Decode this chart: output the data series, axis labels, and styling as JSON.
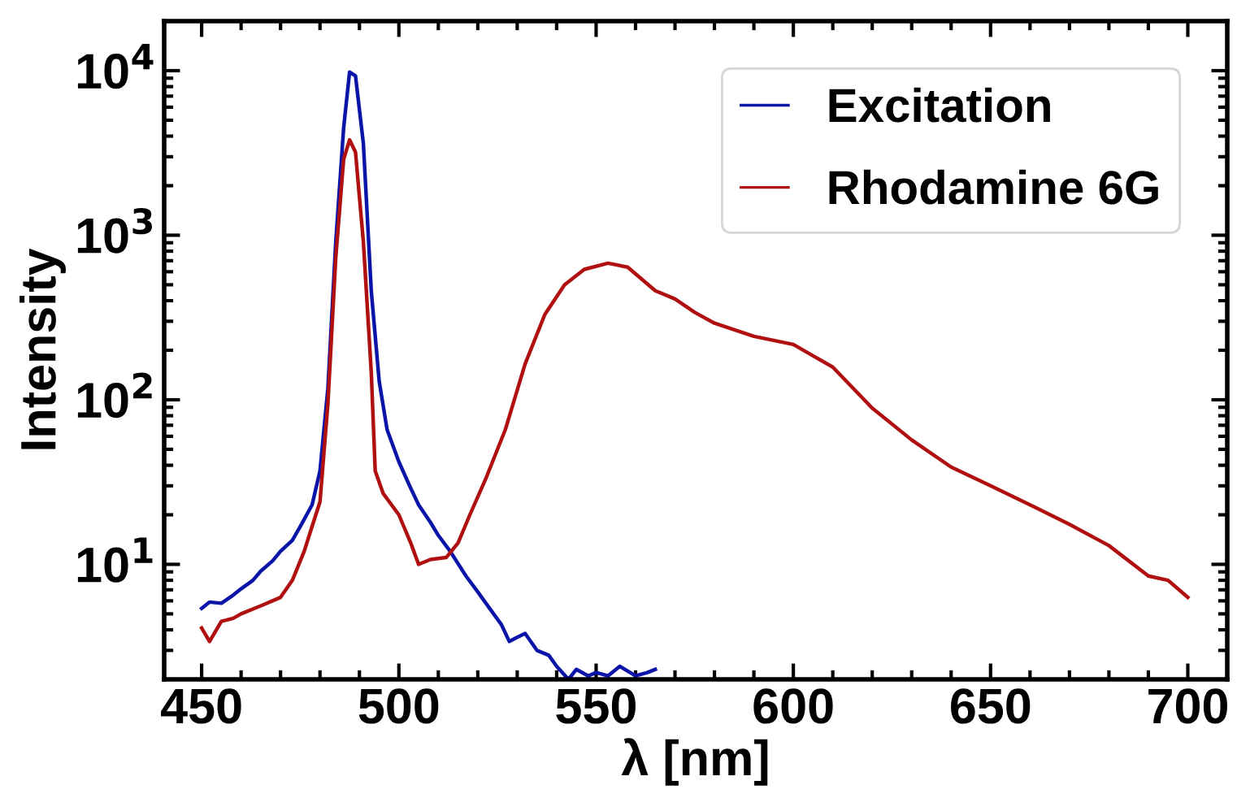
{
  "chart_data": {
    "type": "line",
    "xlabel": "λ [nm]",
    "ylabel": "Intensity",
    "log": "y",
    "xlim": [
      440.5,
      710
    ],
    "ylim": [
      2,
      20000
    ],
    "xticks": [
      450,
      500,
      550,
      600,
      650,
      700
    ],
    "yticks": [
      {
        "value": 10,
        "label": "10$^{1}$"
      },
      {
        "value": 100,
        "label": "10$^{2}$"
      },
      {
        "value": 1000,
        "label": "10$^{3}$"
      },
      {
        "value": 10000,
        "label": "10$^{4}$"
      }
    ],
    "legend": "top right",
    "grid": false,
    "marker": "none",
    "line_style": "solid",
    "series": [
      {
        "name": "Excitation",
        "color": "#0a14a8",
        "x": [
          450,
          452,
          455,
          458,
          460,
          463,
          465,
          468,
          470,
          473,
          475,
          478,
          480,
          482,
          484,
          486,
          487.5,
          489,
          491,
          493,
          495,
          497,
          500,
          503,
          505,
          508,
          510,
          513,
          517,
          520,
          523,
          526,
          528,
          530,
          532,
          535,
          538,
          540,
          543,
          545,
          548,
          550,
          553,
          556,
          560,
          563,
          565
        ],
        "values": [
          5.4,
          5.9,
          5.8,
          6.5,
          7.1,
          8.0,
          9.1,
          10.5,
          12,
          14,
          17,
          23,
          37,
          117,
          910,
          4500,
          9800,
          9300,
          3600,
          460,
          130,
          66,
          42,
          29,
          23,
          18,
          15,
          12,
          8.5,
          6.8,
          5.4,
          4.3,
          3.4,
          3.6,
          3.8,
          3.0,
          2.8,
          2.4,
          2.0,
          2.3,
          2.1,
          2.2,
          2.1,
          2.4,
          2.1,
          2.2,
          2.3
        ]
      },
      {
        "name": "Rhodamine 6G",
        "color": "#b01010",
        "x": [
          450,
          452,
          455,
          458,
          460,
          465,
          470,
          473,
          476,
          478,
          480,
          482,
          484,
          486,
          487.5,
          489,
          491,
          493,
          494,
          496,
          500,
          503,
          505,
          508,
          512,
          515,
          518,
          522,
          527,
          532,
          537,
          542,
          547,
          553,
          558,
          565,
          570,
          575,
          580,
          590,
          600,
          605,
          610,
          620,
          630,
          640,
          650,
          660,
          670,
          680,
          690,
          695,
          700
        ],
        "values": [
          4.1,
          3.4,
          4.5,
          4.7,
          5.0,
          5.6,
          6.3,
          8.0,
          12,
          17,
          24,
          94,
          730,
          2900,
          3800,
          3200,
          910,
          147,
          37,
          27,
          20,
          13.5,
          10,
          10.7,
          11,
          13.5,
          20,
          33,
          66,
          165,
          330,
          500,
          620,
          676,
          640,
          460,
          410,
          340,
          292,
          243,
          217,
          185,
          158,
          89,
          57,
          39,
          30,
          23,
          17.5,
          13,
          8.5,
          8,
          6.3
        ]
      }
    ]
  }
}
